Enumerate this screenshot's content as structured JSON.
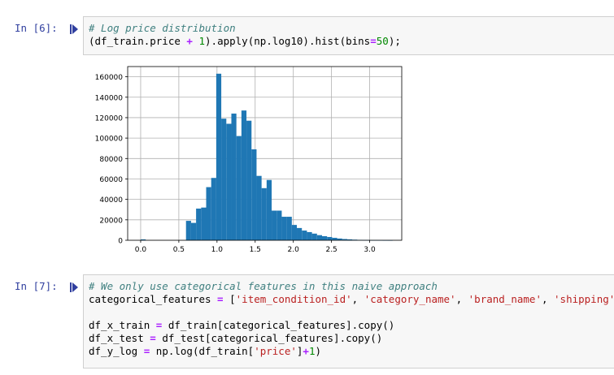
{
  "cells": [
    {
      "prompt": "In [6]:",
      "comment": "# Log price distribution",
      "code": {
        "p1": "(df_train.price ",
        "op": "+",
        "p2": " ",
        "n1": "1",
        "p3": ").apply(np.log10).hist(bins",
        "eq": "=",
        "n2": "50",
        "p4": ");"
      }
    },
    {
      "prompt": "In [7]:",
      "comment": "# We only use categorical features in this naive approach",
      "line1": {
        "a": "categorical_features ",
        "eq": "=",
        "b": " [",
        "s1": "'item_condition_id'",
        "c1": ", ",
        "s2": "'category_name'",
        "c2": ", ",
        "s3": "'brand_name'",
        "c3": ", ",
        "s4": "'shipping'",
        "e": "]"
      },
      "line2": {
        "a": "df_x_train ",
        "eq": "=",
        "b": " df_train[categorical_features].copy()"
      },
      "line3": {
        "a": "df_x_test ",
        "eq": "=",
        "b": " df_test[categorical_features].copy()"
      },
      "line4": {
        "a": "df_y_log ",
        "eq": "=",
        "b": " np.log(df_train[",
        "s": "'price'",
        "c": "]",
        "op": "+",
        "n": "1",
        "e": ")"
      }
    }
  ],
  "chart_data": {
    "type": "bar",
    "title": "",
    "xlabel": "",
    "ylabel": "",
    "xlim": [
      -0.17,
      3.42
    ],
    "ylim": [
      0,
      170000
    ],
    "grid": true,
    "bar_color": "#1f77b4",
    "x_ticks": [
      "0.0",
      "0.5",
      "1.0",
      "1.5",
      "2.0",
      "2.5",
      "3.0"
    ],
    "y_ticks": [
      "0",
      "20000",
      "40000",
      "60000",
      "80000",
      "100000",
      "120000",
      "140000",
      "160000"
    ],
    "bins": [
      {
        "x0": 0.0,
        "x1": 0.066,
        "v": 874
      },
      {
        "x0": 0.066,
        "x1": 0.132,
        "v": 0
      },
      {
        "x0": 0.132,
        "x1": 0.198,
        "v": 0
      },
      {
        "x0": 0.198,
        "x1": 0.264,
        "v": 0
      },
      {
        "x0": 0.264,
        "x1": 0.33,
        "v": 0
      },
      {
        "x0": 0.33,
        "x1": 0.396,
        "v": 0
      },
      {
        "x0": 0.396,
        "x1": 0.462,
        "v": 0
      },
      {
        "x0": 0.462,
        "x1": 0.528,
        "v": 0
      },
      {
        "x0": 0.528,
        "x1": 0.594,
        "v": 0
      },
      {
        "x0": 0.594,
        "x1": 0.66,
        "v": 19000
      },
      {
        "x0": 0.66,
        "x1": 0.726,
        "v": 17000
      },
      {
        "x0": 0.726,
        "x1": 0.792,
        "v": 31000
      },
      {
        "x0": 0.792,
        "x1": 0.858,
        "v": 32000
      },
      {
        "x0": 0.858,
        "x1": 0.924,
        "v": 52000
      },
      {
        "x0": 0.924,
        "x1": 0.99,
        "v": 61000
      },
      {
        "x0": 0.99,
        "x1": 1.056,
        "v": 163000
      },
      {
        "x0": 1.056,
        "x1": 1.122,
        "v": 119000
      },
      {
        "x0": 1.122,
        "x1": 1.188,
        "v": 114000
      },
      {
        "x0": 1.188,
        "x1": 1.254,
        "v": 124000
      },
      {
        "x0": 1.254,
        "x1": 1.32,
        "v": 102000
      },
      {
        "x0": 1.32,
        "x1": 1.386,
        "v": 127000
      },
      {
        "x0": 1.386,
        "x1": 1.452,
        "v": 117000
      },
      {
        "x0": 1.452,
        "x1": 1.518,
        "v": 89000
      },
      {
        "x0": 1.518,
        "x1": 1.584,
        "v": 63000
      },
      {
        "x0": 1.584,
        "x1": 1.65,
        "v": 51000
      },
      {
        "x0": 1.65,
        "x1": 1.716,
        "v": 59000
      },
      {
        "x0": 1.716,
        "x1": 1.782,
        "v": 29000
      },
      {
        "x0": 1.782,
        "x1": 1.848,
        "v": 29000
      },
      {
        "x0": 1.848,
        "x1": 1.914,
        "v": 23000
      },
      {
        "x0": 1.914,
        "x1": 1.98,
        "v": 23000
      },
      {
        "x0": 1.98,
        "x1": 2.046,
        "v": 15000
      },
      {
        "x0": 2.046,
        "x1": 2.112,
        "v": 12000
      },
      {
        "x0": 2.112,
        "x1": 2.178,
        "v": 9500
      },
      {
        "x0": 2.178,
        "x1": 2.244,
        "v": 8000
      },
      {
        "x0": 2.244,
        "x1": 2.31,
        "v": 6500
      },
      {
        "x0": 2.31,
        "x1": 2.376,
        "v": 5000
      },
      {
        "x0": 2.376,
        "x1": 2.442,
        "v": 4000
      },
      {
        "x0": 2.442,
        "x1": 2.508,
        "v": 3200
      },
      {
        "x0": 2.508,
        "x1": 2.574,
        "v": 2400
      },
      {
        "x0": 2.574,
        "x1": 2.64,
        "v": 1700
      },
      {
        "x0": 2.64,
        "x1": 2.706,
        "v": 1200
      },
      {
        "x0": 2.706,
        "x1": 2.772,
        "v": 900
      },
      {
        "x0": 2.772,
        "x1": 2.838,
        "v": 600
      },
      {
        "x0": 2.838,
        "x1": 2.904,
        "v": 400
      },
      {
        "x0": 2.904,
        "x1": 2.97,
        "v": 250
      },
      {
        "x0": 2.97,
        "x1": 3.036,
        "v": 180
      },
      {
        "x0": 3.036,
        "x1": 3.102,
        "v": 120
      },
      {
        "x0": 3.102,
        "x1": 3.168,
        "v": 80
      },
      {
        "x0": 3.168,
        "x1": 3.234,
        "v": 50
      },
      {
        "x0": 3.234,
        "x1": 3.3,
        "v": 30
      }
    ]
  }
}
